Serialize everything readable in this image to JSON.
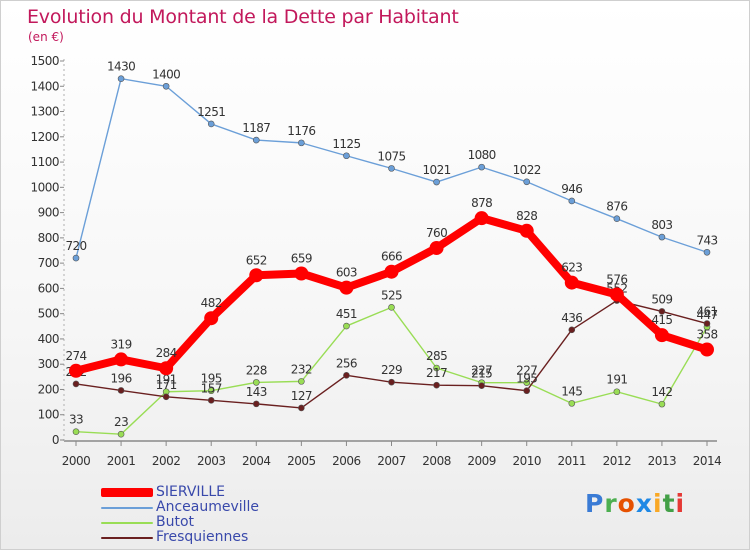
{
  "title": "Evolution du Montant de la Dette par Habitant",
  "subtitle": "(en €)",
  "logo": {
    "text": "Proxiti",
    "colors": [
      "#3a7bd5",
      "#4caf50",
      "#e65100",
      "#1e88e5",
      "#f9a825",
      "#43a047",
      "#e53935"
    ]
  },
  "chart_data": {
    "type": "line",
    "title": "Evolution du Montant de la Dette par Habitant",
    "ylabel": "(en €)",
    "xlabel": "",
    "x": [
      "2000",
      "2001",
      "2002",
      "2003",
      "2004",
      "2005",
      "2006",
      "2007",
      "2008",
      "2009",
      "2010",
      "2011",
      "2012",
      "2013",
      "2014"
    ],
    "ylim": [
      0,
      1500
    ],
    "yticks": [
      0,
      100,
      200,
      300,
      400,
      500,
      600,
      700,
      800,
      900,
      1000,
      1100,
      1200,
      1300,
      1400,
      1500
    ],
    "grid": false,
    "legend_position": "bottom-left",
    "series": [
      {
        "name": "SIERVILLE",
        "color": "#ff0000",
        "emphasis": true,
        "values": [
          274,
          319,
          284,
          482,
          652,
          659,
          603,
          666,
          760,
          878,
          828,
          623,
          576,
          415,
          358
        ]
      },
      {
        "name": "Anceaumeville",
        "color": "#6b9fd8",
        "emphasis": false,
        "values": [
          720,
          1430,
          1400,
          1251,
          1187,
          1176,
          1125,
          1075,
          1021,
          1080,
          1022,
          946,
          876,
          803,
          743
        ]
      },
      {
        "name": "Butot",
        "color": "#99dd55",
        "emphasis": false,
        "values": [
          33,
          23,
          191,
          195,
          228,
          232,
          451,
          525,
          285,
          227,
          227,
          145,
          191,
          142,
          447
        ]
      },
      {
        "name": "Fresquiennes",
        "color": "#6a2020",
        "emphasis": false,
        "values": [
          222,
          196,
          171,
          157,
          143,
          127,
          256,
          229,
          217,
          215,
          195,
          436,
          552,
          509,
          461
        ]
      }
    ]
  }
}
